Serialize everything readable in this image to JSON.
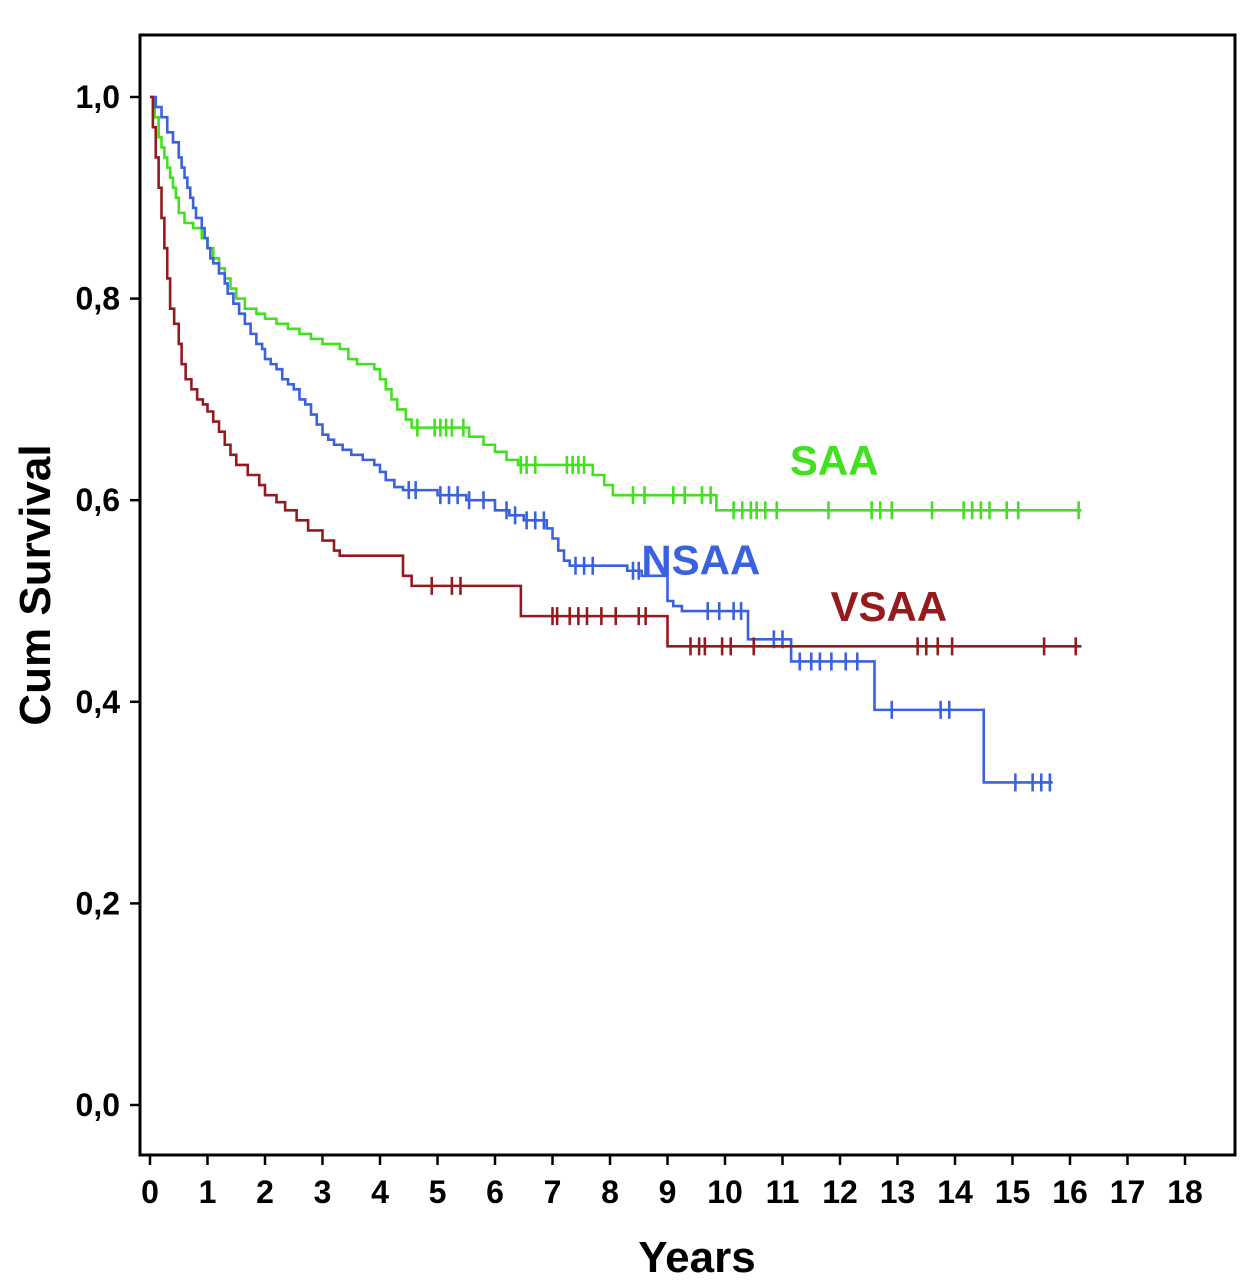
{
  "chart_data": {
    "type": "line",
    "subtype": "kaplan-meier-step-survival",
    "title": "",
    "xlabel": "Years",
    "ylabel": "Cum Survival",
    "xlim": [
      0,
      18
    ],
    "ylim": [
      0.0,
      1.0
    ],
    "grid": false,
    "legend_position": "inline-labels",
    "x_ticks": [
      0,
      1,
      2,
      3,
      4,
      5,
      6,
      7,
      8,
      9,
      10,
      11,
      12,
      13,
      14,
      15,
      16,
      17,
      18
    ],
    "y_ticks": [
      {
        "value": 0.0,
        "label": "0,0"
      },
      {
        "value": 0.2,
        "label": "0,2"
      },
      {
        "value": 0.4,
        "label": "0,4"
      },
      {
        "value": 0.6,
        "label": "0,6"
      },
      {
        "value": 0.8,
        "label": "0,8"
      },
      {
        "value": 1.0,
        "label": "1,0"
      }
    ],
    "series": [
      {
        "name": "SAA",
        "color": "#43e01f",
        "label_pos": {
          "x": 11.9,
          "y": 0.64
        },
        "end_x": 16.2,
        "steps": [
          [
            0,
            1.0
          ],
          [
            0.08,
            0.98
          ],
          [
            0.15,
            0.96
          ],
          [
            0.2,
            0.95
          ],
          [
            0.25,
            0.94
          ],
          [
            0.3,
            0.93
          ],
          [
            0.35,
            0.92
          ],
          [
            0.4,
            0.91
          ],
          [
            0.45,
            0.9
          ],
          [
            0.5,
            0.885
          ],
          [
            0.6,
            0.875
          ],
          [
            0.75,
            0.87
          ],
          [
            0.9,
            0.86
          ],
          [
            1.0,
            0.85
          ],
          [
            1.1,
            0.84
          ],
          [
            1.2,
            0.83
          ],
          [
            1.3,
            0.82
          ],
          [
            1.4,
            0.81
          ],
          [
            1.5,
            0.8
          ],
          [
            1.65,
            0.79
          ],
          [
            1.85,
            0.785
          ],
          [
            2.0,
            0.78
          ],
          [
            2.2,
            0.775
          ],
          [
            2.4,
            0.77
          ],
          [
            2.6,
            0.765
          ],
          [
            2.8,
            0.76
          ],
          [
            3.0,
            0.755
          ],
          [
            3.3,
            0.75
          ],
          [
            3.45,
            0.74
          ],
          [
            3.6,
            0.735
          ],
          [
            3.9,
            0.73
          ],
          [
            4.0,
            0.72
          ],
          [
            4.1,
            0.71
          ],
          [
            4.2,
            0.7
          ],
          [
            4.3,
            0.69
          ],
          [
            4.45,
            0.68
          ],
          [
            4.55,
            0.672
          ],
          [
            5.55,
            0.663
          ],
          [
            5.8,
            0.655
          ],
          [
            6.0,
            0.648
          ],
          [
            6.2,
            0.64
          ],
          [
            6.4,
            0.635
          ],
          [
            7.7,
            0.625
          ],
          [
            7.9,
            0.615
          ],
          [
            8.05,
            0.605
          ],
          [
            9.85,
            0.59
          ]
        ],
        "censor_times": [
          4.65,
          4.95,
          5.05,
          5.15,
          5.25,
          5.45,
          6.45,
          6.55,
          6.7,
          7.25,
          7.35,
          7.45,
          7.55,
          8.4,
          8.6,
          9.1,
          9.3,
          9.6,
          9.75,
          10.15,
          10.3,
          10.45,
          10.55,
          10.7,
          10.9,
          11.8,
          12.55,
          12.7,
          12.9,
          13.6,
          14.15,
          14.3,
          14.45,
          14.6,
          14.9,
          15.1,
          16.15
        ]
      },
      {
        "name": "NSAA",
        "color": "#3a62e0",
        "label_pos": {
          "x": 9.58,
          "y": 0.541
        },
        "end_x": 15.7,
        "steps": [
          [
            0,
            1.0
          ],
          [
            0.1,
            0.99
          ],
          [
            0.2,
            0.98
          ],
          [
            0.3,
            0.965
          ],
          [
            0.4,
            0.955
          ],
          [
            0.5,
            0.94
          ],
          [
            0.55,
            0.93
          ],
          [
            0.6,
            0.92
          ],
          [
            0.65,
            0.91
          ],
          [
            0.7,
            0.9
          ],
          [
            0.75,
            0.89
          ],
          [
            0.8,
            0.88
          ],
          [
            0.9,
            0.87
          ],
          [
            0.95,
            0.86
          ],
          [
            1.0,
            0.85
          ],
          [
            1.05,
            0.84
          ],
          [
            1.1,
            0.835
          ],
          [
            1.2,
            0.825
          ],
          [
            1.3,
            0.815
          ],
          [
            1.35,
            0.805
          ],
          [
            1.45,
            0.795
          ],
          [
            1.55,
            0.785
          ],
          [
            1.65,
            0.775
          ],
          [
            1.75,
            0.765
          ],
          [
            1.85,
            0.755
          ],
          [
            1.95,
            0.75
          ],
          [
            2.0,
            0.74
          ],
          [
            2.1,
            0.735
          ],
          [
            2.2,
            0.73
          ],
          [
            2.3,
            0.72
          ],
          [
            2.4,
            0.715
          ],
          [
            2.5,
            0.71
          ],
          [
            2.6,
            0.7
          ],
          [
            2.7,
            0.695
          ],
          [
            2.8,
            0.685
          ],
          [
            2.9,
            0.675
          ],
          [
            3.0,
            0.665
          ],
          [
            3.1,
            0.66
          ],
          [
            3.2,
            0.655
          ],
          [
            3.35,
            0.65
          ],
          [
            3.5,
            0.645
          ],
          [
            3.7,
            0.64
          ],
          [
            3.9,
            0.635
          ],
          [
            4.0,
            0.628
          ],
          [
            4.1,
            0.62
          ],
          [
            4.25,
            0.613
          ],
          [
            4.4,
            0.61
          ],
          [
            5.0,
            0.605
          ],
          [
            5.5,
            0.6
          ],
          [
            6.0,
            0.59
          ],
          [
            6.25,
            0.585
          ],
          [
            6.5,
            0.58
          ],
          [
            6.9,
            0.572
          ],
          [
            7.0,
            0.562
          ],
          [
            7.1,
            0.55
          ],
          [
            7.2,
            0.54
          ],
          [
            7.3,
            0.535
          ],
          [
            8.3,
            0.53
          ],
          [
            8.55,
            0.525
          ],
          [
            9.0,
            0.5
          ],
          [
            9.1,
            0.495
          ],
          [
            9.25,
            0.49
          ],
          [
            10.4,
            0.462
          ],
          [
            11.15,
            0.44
          ],
          [
            12.6,
            0.392
          ],
          [
            14.5,
            0.32
          ]
        ],
        "censor_times": [
          4.5,
          4.62,
          5.05,
          5.2,
          5.35,
          5.55,
          5.8,
          6.2,
          6.35,
          6.55,
          6.7,
          6.85,
          7.4,
          7.55,
          7.7,
          8.4,
          8.5,
          9.7,
          9.9,
          10.15,
          10.28,
          10.85,
          11.0,
          11.3,
          11.5,
          11.65,
          11.85,
          12.1,
          12.3,
          12.9,
          13.75,
          13.9,
          15.05,
          15.35,
          15.5,
          15.65
        ]
      },
      {
        "name": "VSAA",
        "color": "#941a1d",
        "label_pos": {
          "x": 12.85,
          "y": 0.495
        },
        "end_x": 16.2,
        "steps": [
          [
            0,
            1.0
          ],
          [
            0.05,
            0.97
          ],
          [
            0.1,
            0.94
          ],
          [
            0.15,
            0.91
          ],
          [
            0.2,
            0.88
          ],
          [
            0.25,
            0.85
          ],
          [
            0.3,
            0.82
          ],
          [
            0.35,
            0.79
          ],
          [
            0.42,
            0.775
          ],
          [
            0.5,
            0.755
          ],
          [
            0.55,
            0.735
          ],
          [
            0.62,
            0.72
          ],
          [
            0.72,
            0.71
          ],
          [
            0.82,
            0.7
          ],
          [
            0.92,
            0.695
          ],
          [
            1.0,
            0.688
          ],
          [
            1.1,
            0.678
          ],
          [
            1.2,
            0.668
          ],
          [
            1.3,
            0.655
          ],
          [
            1.4,
            0.645
          ],
          [
            1.5,
            0.635
          ],
          [
            1.7,
            0.625
          ],
          [
            1.9,
            0.615
          ],
          [
            2.0,
            0.605
          ],
          [
            2.2,
            0.598
          ],
          [
            2.35,
            0.59
          ],
          [
            2.55,
            0.58
          ],
          [
            2.75,
            0.57
          ],
          [
            3.0,
            0.56
          ],
          [
            3.2,
            0.55
          ],
          [
            3.3,
            0.545
          ],
          [
            4.4,
            0.525
          ],
          [
            4.55,
            0.515
          ],
          [
            6.45,
            0.485
          ],
          [
            9.0,
            0.455
          ]
        ],
        "censor_times": [
          4.9,
          5.25,
          5.4,
          7.0,
          7.08,
          7.3,
          7.45,
          7.6,
          7.85,
          8.1,
          8.5,
          8.62,
          9.4,
          9.55,
          9.65,
          9.95,
          10.1,
          10.5,
          13.35,
          13.5,
          13.7,
          13.95,
          15.55,
          16.1
        ]
      }
    ],
    "plot_style": {
      "frame_color": "#000000",
      "background": "#ffffff",
      "line_width": 2.6,
      "censor_tick_height": 18
    }
  }
}
